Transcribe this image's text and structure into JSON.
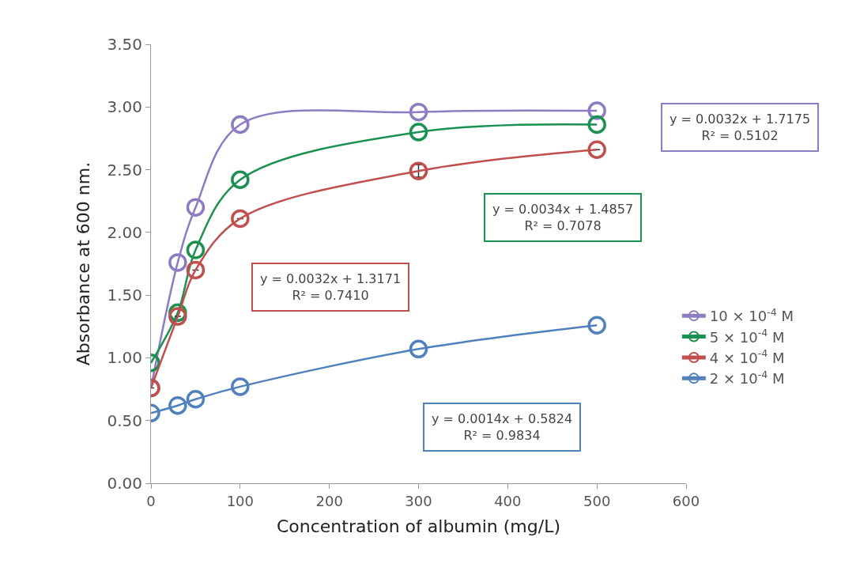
{
  "chart_data": {
    "type": "line",
    "xlabel": "Concentration of albumin (mg/L)",
    "ylabel": "Absorbance at 600 nm.",
    "x": [
      0,
      30,
      50,
      100,
      300,
      500
    ],
    "series": [
      {
        "name": "10 × 10$^{-4}$ M",
        "color": "#8e7cc3",
        "values": [
          0.76,
          1.76,
          2.2,
          2.86,
          2.96,
          2.97
        ]
      },
      {
        "name": "5 × 10$^{-4}$ M",
        "color": "#1a9150",
        "values": [
          0.96,
          1.36,
          1.86,
          2.42,
          2.8,
          2.86
        ]
      },
      {
        "name": "4 × 10$^{-4}$ M",
        "color": "#c0504d",
        "values": [
          0.76,
          1.33,
          1.7,
          2.11,
          2.49,
          2.66
        ],
        "errors": [
          null,
          null,
          null,
          null,
          0.05,
          null
        ]
      },
      {
        "name": "2 × 10$^{-4}$ M",
        "color": "#4f81bd",
        "values": [
          0.56,
          0.62,
          0.67,
          0.77,
          1.07,
          1.26
        ]
      }
    ],
    "annotations": [
      "y = 0.0032x + 1.7175\nR² = 0.5102",
      "y = 0.0034x + 1.4857\nR² = 0.7078",
      "y = 0.0032x + 1.3171\nR² = 0.7410",
      "y = 0.0014x + 0.5824\nR² = 0.9834"
    ],
    "xlim": [
      0,
      600
    ],
    "xticks": [
      0,
      100,
      200,
      300,
      400,
      500,
      600
    ],
    "ylim": [
      0,
      3.5
    ],
    "yticks": [
      {
        "value": 0,
        "label": "0.00"
      },
      {
        "value": 0.5,
        "label": "0.50"
      },
      {
        "value": 1,
        "label": "1.00"
      },
      {
        "value": 1.5,
        "label": "1.50"
      },
      {
        "value": 2,
        "label": "2.00"
      },
      {
        "value": 2.5,
        "label": "2.50"
      },
      {
        "value": 3,
        "label": "3.00"
      },
      {
        "value": 3.5,
        "label": "3.50"
      }
    ],
    "legend": "right",
    "marker": "circle",
    "line_style": "solid"
  }
}
